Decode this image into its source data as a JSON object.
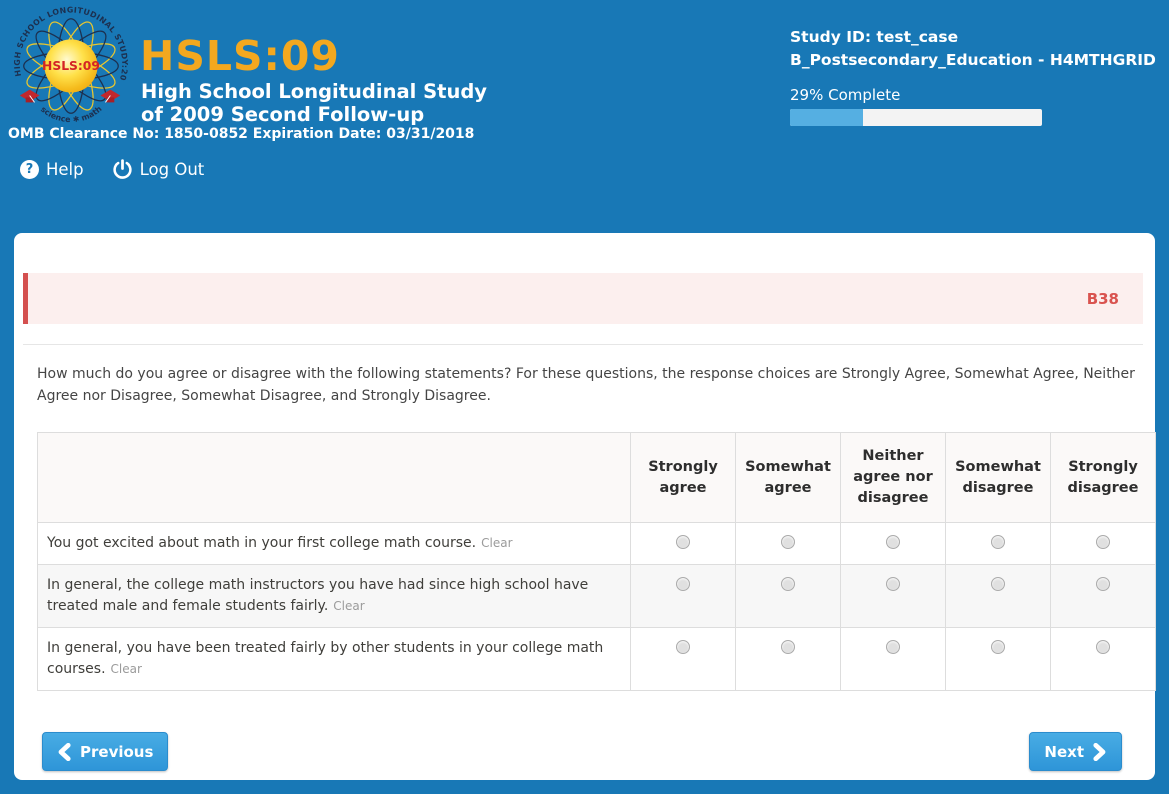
{
  "header": {
    "logo": {
      "orbit_text": "HIGH SCHOOL LONGITUDINAL STUDY:2009",
      "center_label": "HSLS:09",
      "bottom_text": "science ✱ math"
    },
    "title": "HSLS:09",
    "subtitle_line1": "High School Longitudinal Study",
    "subtitle_line2": "of 2009 Second Follow-up",
    "omb_line": "OMB Clearance No: 1850-0852 Expiration Date: 03/31/2018",
    "help_label": "Help",
    "logout_label": "Log Out",
    "study_id_line": "Study ID: test_case",
    "module_line": "B_Postsecondary_Education - H4MTHGRID",
    "progress_label": "29% Complete",
    "progress_percent": 29
  },
  "icons": {
    "help_glyph": "?"
  },
  "question": {
    "code": "B38",
    "prompt": "How much do you agree or disagree with the following statements? For these questions, the response choices are Strongly Agree, Somewhat Agree, Neither Agree nor Disagree, Somewhat Disagree, and Strongly Disagree.",
    "columns": [
      "Strongly agree",
      "Somewhat agree",
      "Neither agree nor disagree",
      "Somewhat disagree",
      "Strongly disagree"
    ],
    "rows": [
      {
        "statement": "You got excited about math in your first college math course.",
        "clear_label": "Clear"
      },
      {
        "statement": "In general, the college math instructors you have had since high school have treated male and female students fairly.",
        "clear_label": "Clear"
      },
      {
        "statement": "In general, you have been treated fairly by other students in your college math courses.",
        "clear_label": "Clear"
      }
    ]
  },
  "nav": {
    "previous_label": "Previous",
    "next_label": "Next"
  },
  "colors": {
    "header_blue": "#1878b6",
    "title_orange": "#f3a81f",
    "progress_fill": "#55afe2",
    "banner_pink": "#fcefee",
    "banner_red_bar": "#d4504f",
    "question_code_red": "#d9534f",
    "button_blue": "#2e95d8",
    "table_border": "#dddddd",
    "alt_row_gray": "#f7f7f7"
  }
}
